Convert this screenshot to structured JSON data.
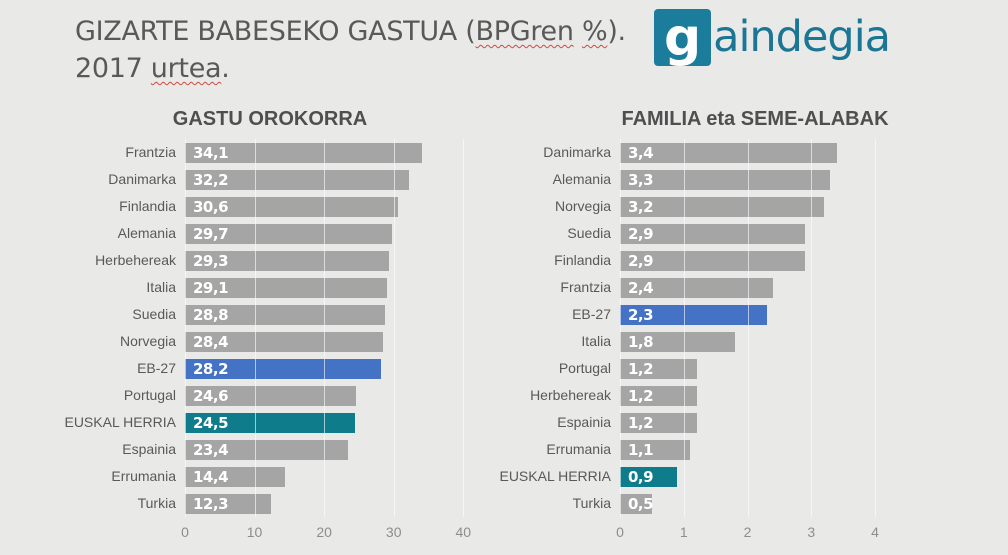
{
  "page": {
    "background": "#e9e9e8"
  },
  "header": {
    "title": {
      "line1_prefix": "GIZARTE BABESEKO GASTUA (",
      "line1_misspelled1": "BPGren",
      "line1_space": " ",
      "line1_misspelled2": "%",
      "line1_suffix": ").",
      "line2_prefix": "2017 ",
      "line2_misspelled": "urtea",
      "line2_suffix": "."
    },
    "logo": {
      "name": "gaindegia",
      "icon_letter": "g",
      "wordmark_rest": "aindegia",
      "color": "#1a7694"
    }
  },
  "colors": {
    "bar_default": "#a5a5a5",
    "bar_eu": "#4472c4",
    "bar_basque": "#0e7c8b",
    "title_text": "#595959",
    "axis_text": "#8d8d8d",
    "value_text": "#ffffff"
  },
  "chart_data": [
    {
      "type": "bar",
      "orientation": "horizontal",
      "title": "GASTU OROKORRA",
      "categories": [
        "Frantzia",
        "Danimarka",
        "Finlandia",
        "Alemania",
        "Herbehereak",
        "Italia",
        "Suedia",
        "Norvegia",
        "EB-27",
        "Portugal",
        "EUSKAL HERRIA",
        "Espainia",
        "Errumania",
        "Turkia"
      ],
      "values": [
        34.1,
        32.2,
        30.6,
        29.7,
        29.3,
        29.1,
        28.8,
        28.4,
        28.2,
        24.6,
        24.5,
        23.4,
        14.4,
        12.3
      ],
      "value_labels": [
        "34,1",
        "32,2",
        "30,6",
        "29,7",
        "29,3",
        "29,1",
        "28,8",
        "28,4",
        "28,2",
        "24,6",
        "24,5",
        "23,4",
        "14,4",
        "12,3"
      ],
      "color_roles": [
        "default",
        "default",
        "default",
        "default",
        "default",
        "default",
        "default",
        "default",
        "eu",
        "default",
        "basque",
        "default",
        "default",
        "default"
      ],
      "ticks": [
        0,
        10,
        20,
        30,
        40
      ],
      "xlim": [
        0,
        40
      ],
      "axis_max_extent": 42.4,
      "grid": true,
      "legend": false,
      "xlabel": "",
      "ylabel": ""
    },
    {
      "type": "bar",
      "orientation": "horizontal",
      "title": "FAMILIA eta SEME-ALABAK",
      "categories": [
        "Danimarka",
        "Alemania",
        "Norvegia",
        "Suedia",
        "Finlandia",
        "Frantzia",
        "EB-27",
        "Italia",
        "Portugal",
        "Herbehereak",
        "Espainia",
        "Errumania",
        "EUSKAL HERRIA",
        "Turkia"
      ],
      "values": [
        3.4,
        3.3,
        3.2,
        2.9,
        2.9,
        2.4,
        2.3,
        1.8,
        1.2,
        1.2,
        1.2,
        1.1,
        0.9,
        0.5
      ],
      "value_labels": [
        "3,4",
        "3,3",
        "3,2",
        "2,9",
        "2,9",
        "2,4",
        "2,3",
        "1,8",
        "1,2",
        "1,2",
        "1,2",
        "1,1",
        "0,9",
        "0,5"
      ],
      "color_roles": [
        "default",
        "default",
        "default",
        "default",
        "default",
        "default",
        "eu",
        "default",
        "default",
        "default",
        "default",
        "default",
        "basque",
        "default"
      ],
      "ticks": [
        0,
        1,
        2,
        3,
        4
      ],
      "xlim": [
        0,
        4
      ],
      "axis_max_extent": 4.94,
      "grid": true,
      "legend": false,
      "xlabel": "",
      "ylabel": ""
    }
  ]
}
